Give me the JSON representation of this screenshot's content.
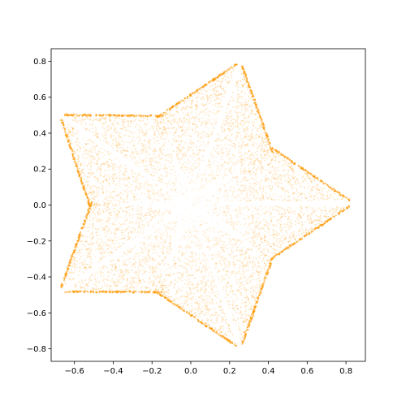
{
  "chart_data": {
    "type": "scatter",
    "title": "",
    "xlabel": "",
    "ylabel": "",
    "xlim": [
      -0.72,
      0.9
    ],
    "ylim": [
      -0.87,
      0.87
    ],
    "grid": false,
    "legend": "none",
    "point_color": "#FF9800",
    "x_ticks": [
      -0.6,
      -0.4,
      -0.2,
      0.0,
      0.2,
      0.4,
      0.6,
      0.8
    ],
    "x_tick_labels": [
      "−0.6",
      "−0.4",
      "−0.2",
      "0.0",
      "0.2",
      "0.4",
      "0.6",
      "0.8"
    ],
    "y_ticks": [
      0.8,
      0.6,
      0.4,
      0.2,
      0.0,
      -0.2,
      -0.4,
      -0.6,
      -0.8
    ],
    "y_tick_labels": [
      "0.8",
      "0.6",
      "0.4",
      "0.2",
      "0.0",
      "−0.2",
      "−0.4",
      "−0.6",
      "−0.8"
    ],
    "symmetry": "5-fold star of 10 triangular point clouds",
    "petals": [
      {
        "tip": [
          0.82,
          0.01
        ],
        "apex": [
          0.07,
          0.01
        ]
      },
      {
        "tip": [
          0.25,
          0.78
        ],
        "apex": [
          0.02,
          0.07
        ]
      },
      {
        "tip": [
          -0.66,
          0.49
        ],
        "apex": [
          -0.06,
          0.04
        ]
      },
      {
        "tip": [
          -0.66,
          -0.47
        ],
        "apex": [
          -0.06,
          -0.04
        ]
      },
      {
        "tip": [
          0.25,
          -0.78
        ],
        "apex": [
          0.02,
          -0.07
        ]
      }
    ]
  }
}
